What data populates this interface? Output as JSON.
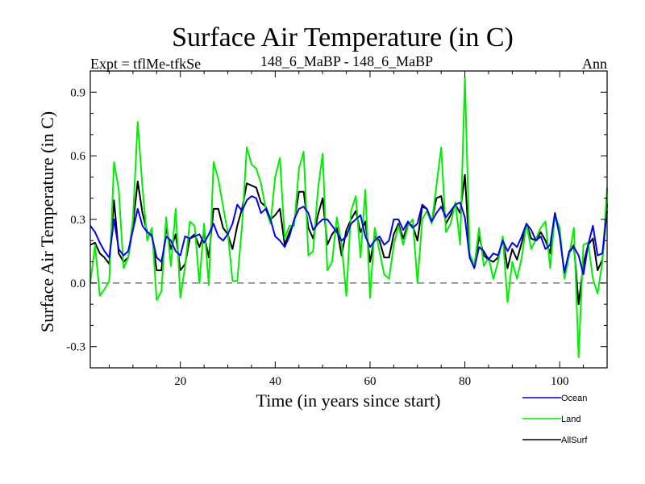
{
  "header": {
    "title": "Surface Air Temperature (in C)",
    "expt": "Expt = tflMe-tfkSe",
    "subtitle": "148_6_MaBP - 148_6_MaBP",
    "period": "Ann"
  },
  "chart_data": {
    "type": "line",
    "title": "Surface Air Temperature (in C)",
    "xlabel": "Time (in years since start)",
    "ylabel": "Surface Air Temperature (in C)",
    "xlim": [
      1,
      110
    ],
    "ylim": [
      -0.4,
      1.0
    ],
    "xticks": [
      20,
      40,
      60,
      80,
      100
    ],
    "yticks": [
      -0.3,
      0.0,
      0.3,
      0.6,
      0.9
    ],
    "ytick_labels": [
      "-0.3",
      "0.0",
      "0.3",
      "0.6",
      "0.9"
    ],
    "reference_line": 0.0,
    "legend_position": "bottom-right",
    "series": [
      {
        "name": "Ocean",
        "color": "#0000ff",
        "values": [
          0.27,
          0.24,
          0.19,
          0.15,
          0.12,
          0.3,
          0.16,
          0.13,
          0.15,
          0.25,
          0.35,
          0.27,
          0.24,
          0.22,
          0.12,
          0.1,
          0.22,
          0.2,
          0.15,
          0.13,
          0.22,
          0.21,
          0.22,
          0.23,
          0.19,
          0.23,
          0.28,
          0.22,
          0.2,
          0.23,
          0.28,
          0.37,
          0.34,
          0.39,
          0.41,
          0.4,
          0.33,
          0.35,
          0.3,
          0.22,
          0.2,
          0.17,
          0.22,
          0.3,
          0.35,
          0.36,
          0.33,
          0.25,
          0.28,
          0.3,
          0.3,
          0.27,
          0.24,
          0.2,
          0.22,
          0.28,
          0.3,
          0.32,
          0.22,
          0.17,
          0.2,
          0.22,
          0.18,
          0.2,
          0.3,
          0.3,
          0.25,
          0.29,
          0.26,
          0.28,
          0.37,
          0.35,
          0.29,
          0.33,
          0.36,
          0.31,
          0.34,
          0.37,
          0.38,
          0.31,
          0.12,
          0.07,
          0.17,
          0.15,
          0.11,
          0.14,
          0.13,
          0.2,
          0.15,
          0.19,
          0.17,
          0.22,
          0.28,
          0.25,
          0.2,
          0.22,
          0.16,
          0.18,
          0.33,
          0.22,
          0.05,
          0.15,
          0.17,
          0.13,
          0.04,
          0.18,
          0.27,
          0.13,
          0.14,
          0.34
        ]
      },
      {
        "name": "Land",
        "color": "#00ee00",
        "values": [
          0.0,
          0.18,
          -0.06,
          -0.03,
          0.01,
          0.57,
          0.44,
          0.07,
          0.12,
          0.3,
          0.76,
          0.45,
          0.2,
          0.26,
          -0.08,
          -0.04,
          0.31,
          0.08,
          0.35,
          -0.07,
          0.08,
          0.29,
          0.27,
          0.0,
          0.28,
          -0.01,
          0.57,
          0.49,
          0.36,
          0.24,
          0.01,
          0.01,
          0.27,
          0.64,
          0.56,
          0.54,
          0.47,
          0.35,
          0.28,
          0.5,
          0.59,
          0.21,
          0.27,
          0.27,
          0.54,
          0.62,
          0.13,
          0.15,
          0.44,
          0.61,
          0.06,
          0.1,
          0.31,
          0.18,
          -0.06,
          0.34,
          0.41,
          0.12,
          0.44,
          -0.07,
          0.26,
          0.15,
          0.04,
          0.02,
          0.18,
          0.27,
          0.18,
          0.27,
          0.3,
          0.0,
          0.3,
          0.34,
          0.28,
          0.46,
          0.64,
          0.24,
          0.28,
          0.38,
          0.18,
          0.97,
          0.14,
          0.08,
          0.26,
          0.08,
          0.12,
          0.02,
          0.1,
          0.22,
          -0.09,
          0.1,
          0.02,
          0.12,
          0.28,
          0.16,
          0.21,
          0.26,
          0.29,
          0.07,
          0.32,
          0.26,
          0.02,
          0.13,
          0.26,
          -0.35,
          0.18,
          0.19,
          0.02,
          -0.05,
          0.1,
          0.45
        ]
      },
      {
        "name": "AllSurf",
        "color": "#000000",
        "values": [
          0.18,
          0.19,
          0.14,
          0.12,
          0.09,
          0.39,
          0.14,
          0.1,
          0.12,
          0.27,
          0.48,
          0.33,
          0.24,
          0.23,
          0.06,
          0.06,
          0.26,
          0.16,
          0.23,
          0.06,
          0.09,
          0.21,
          0.23,
          0.17,
          0.23,
          0.12,
          0.35,
          0.35,
          0.26,
          0.23,
          0.16,
          0.27,
          0.35,
          0.47,
          0.46,
          0.45,
          0.38,
          0.36,
          0.3,
          0.32,
          0.35,
          0.18,
          0.24,
          0.29,
          0.43,
          0.43,
          0.26,
          0.21,
          0.32,
          0.4,
          0.18,
          0.23,
          0.26,
          0.13,
          0.25,
          0.3,
          0.34,
          0.24,
          0.29,
          0.1,
          0.22,
          0.2,
          0.12,
          0.12,
          0.23,
          0.28,
          0.21,
          0.28,
          0.27,
          0.2,
          0.36,
          0.35,
          0.29,
          0.4,
          0.41,
          0.28,
          0.32,
          0.37,
          0.33,
          0.51,
          0.13,
          0.08,
          0.22,
          0.13,
          0.11,
          0.1,
          0.12,
          0.21,
          0.07,
          0.16,
          0.11,
          0.19,
          0.28,
          0.21,
          0.2,
          0.24,
          0.2,
          0.14,
          0.33,
          0.23,
          0.04,
          0.14,
          0.18,
          -0.1,
          0.09,
          0.18,
          0.21,
          0.06,
          0.11,
          0.37
        ]
      }
    ]
  }
}
